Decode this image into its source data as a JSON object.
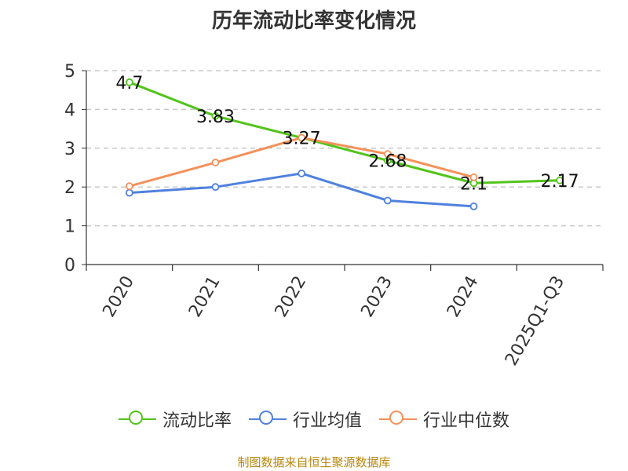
{
  "chart_data": {
    "type": "line",
    "title": "历年流动比率变化情况",
    "categories": [
      "2020",
      "2021",
      "2022",
      "2023",
      "2024",
      "2025Q1-Q3"
    ],
    "ylim": [
      0,
      5
    ],
    "yticks": [
      0,
      1,
      2,
      3,
      4,
      5
    ],
    "grid": true,
    "legend_position": "bottom",
    "series": [
      {
        "name": "流动比率",
        "color": "#52c41a",
        "values": [
          4.7,
          3.83,
          3.27,
          2.68,
          2.1,
          2.17
        ],
        "labels": [
          "4.7",
          "3.83",
          "3.27",
          "2.68",
          "2.1",
          "2.17"
        ],
        "show_labels": true
      },
      {
        "name": "行业均值",
        "color": "#4f81de",
        "values": [
          1.85,
          2.0,
          2.35,
          1.65,
          1.5,
          null
        ],
        "show_labels": false
      },
      {
        "name": "行业中位数",
        "color": "#f4915a",
        "values": [
          2.02,
          2.63,
          3.27,
          2.85,
          2.25,
          null
        ],
        "show_labels": false
      }
    ]
  },
  "source": "制图数据来自恒生聚源数据库"
}
